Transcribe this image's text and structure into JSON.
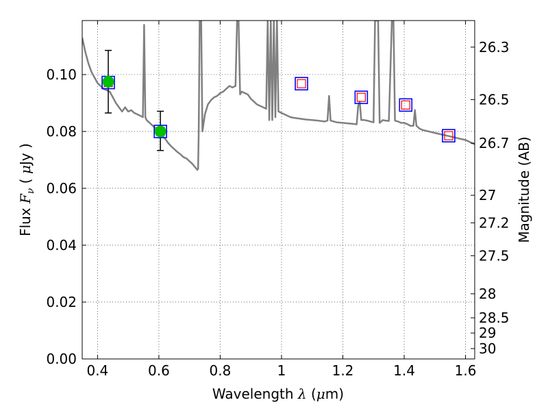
{
  "chart_data": {
    "type": "line",
    "xlabel_text": "Wavelength",
    "xlabel_symbol": "λ",
    "xlabel_unit_open": "(",
    "xlabel_unit_mu": "μ",
    "xlabel_unit_rest": "m)",
    "ylabel_text": "Flux",
    "ylabel_symbol_F": "F",
    "ylabel_symbol_sub": "ν",
    "ylabel_unit_open": "(",
    "ylabel_unit_mu": "μ",
    "ylabel_unit_rest": "Jy )",
    "y2label": "Magnitude (AB)",
    "xlim": [
      0.35,
      1.63
    ],
    "ylim": [
      0.0,
      0.119
    ],
    "grid": true,
    "x_ticks": [
      {
        "value": 0.4,
        "label": "0.4"
      },
      {
        "value": 0.6,
        "label": "0.6"
      },
      {
        "value": 0.8,
        "label": "0.8"
      },
      {
        "value": 1.0,
        "label": "1"
      },
      {
        "value": 1.2,
        "label": "1.2"
      },
      {
        "value": 1.4,
        "label": "1.4"
      },
      {
        "value": 1.6,
        "label": "1.6"
      }
    ],
    "y_ticks": [
      {
        "value": 0.0,
        "label": "0.00"
      },
      {
        "value": 0.02,
        "label": "0.02"
      },
      {
        "value": 0.04,
        "label": "0.04"
      },
      {
        "value": 0.06,
        "label": "0.06"
      },
      {
        "value": 0.08,
        "label": "0.08"
      },
      {
        "value": 0.1,
        "label": "0.10"
      }
    ],
    "mag_ticks": [
      {
        "value": 26.3,
        "label": "26.3"
      },
      {
        "value": 26.5,
        "label": "26.5"
      },
      {
        "value": 26.7,
        "label": "26.7"
      },
      {
        "value": 27.0,
        "label": "27"
      },
      {
        "value": 27.2,
        "label": "27.2"
      },
      {
        "value": 27.5,
        "label": "27.5"
      },
      {
        "value": 28.0,
        "label": "28"
      },
      {
        "value": 28.5,
        "label": "28.5"
      },
      {
        "value": 29.0,
        "label": "29"
      },
      {
        "value": 30.0,
        "label": "30"
      }
    ],
    "spectrum": {
      "color": "#808080",
      "points": [
        [
          0.35,
          0.113
        ],
        [
          0.36,
          0.108
        ],
        [
          0.37,
          0.104
        ],
        [
          0.38,
          0.101
        ],
        [
          0.39,
          0.099
        ],
        [
          0.4,
          0.097
        ],
        [
          0.41,
          0.096
        ],
        [
          0.42,
          0.095
        ],
        [
          0.43,
          0.0945
        ],
        [
          0.44,
          0.094
        ],
        [
          0.45,
          0.092
        ],
        [
          0.46,
          0.09
        ],
        [
          0.47,
          0.0885
        ],
        [
          0.48,
          0.087
        ],
        [
          0.49,
          0.0885
        ],
        [
          0.5,
          0.087
        ],
        [
          0.51,
          0.0875
        ],
        [
          0.52,
          0.0865
        ],
        [
          0.53,
          0.086
        ],
        [
          0.54,
          0.0855
        ],
        [
          0.548,
          0.085
        ],
        [
          0.552,
          0.1175
        ],
        [
          0.556,
          0.085
        ],
        [
          0.56,
          0.084
        ],
        [
          0.57,
          0.083
        ],
        [
          0.58,
          0.082
        ],
        [
          0.59,
          0.081
        ],
        [
          0.6,
          0.0795
        ],
        [
          0.61,
          0.0785
        ],
        [
          0.62,
          0.0775
        ],
        [
          0.63,
          0.076
        ],
        [
          0.64,
          0.0748
        ],
        [
          0.65,
          0.0738
        ],
        [
          0.66,
          0.0728
        ],
        [
          0.67,
          0.072
        ],
        [
          0.68,
          0.071
        ],
        [
          0.69,
          0.0705
        ],
        [
          0.7,
          0.0695
        ],
        [
          0.71,
          0.0685
        ],
        [
          0.72,
          0.0672
        ],
        [
          0.725,
          0.0665
        ],
        [
          0.728,
          0.0668
        ],
        [
          0.73,
          0.08
        ],
        [
          0.733,
          0.119
        ],
        [
          0.738,
          0.119
        ],
        [
          0.742,
          0.08
        ],
        [
          0.75,
          0.086
        ],
        [
          0.76,
          0.0895
        ],
        [
          0.77,
          0.091
        ],
        [
          0.78,
          0.092
        ],
        [
          0.79,
          0.0925
        ],
        [
          0.8,
          0.0935
        ],
        [
          0.81,
          0.094
        ],
        [
          0.82,
          0.095
        ],
        [
          0.83,
          0.096
        ],
        [
          0.84,
          0.0955
        ],
        [
          0.85,
          0.096
        ],
        [
          0.855,
          0.119
        ],
        [
          0.86,
          0.119
        ],
        [
          0.865,
          0.093
        ],
        [
          0.87,
          0.094
        ],
        [
          0.88,
          0.0935
        ],
        [
          0.89,
          0.093
        ],
        [
          0.9,
          0.0915
        ],
        [
          0.91,
          0.0905
        ],
        [
          0.92,
          0.0895
        ],
        [
          0.93,
          0.089
        ],
        [
          0.94,
          0.0885
        ],
        [
          0.95,
          0.088
        ],
        [
          0.955,
          0.119
        ],
        [
          0.96,
          0.084
        ],
        [
          0.965,
          0.119
        ],
        [
          0.97,
          0.084
        ],
        [
          0.975,
          0.119
        ],
        [
          0.98,
          0.085
        ],
        [
          0.985,
          0.119
        ],
        [
          0.99,
          0.087
        ],
        [
          1.0,
          0.0865
        ],
        [
          1.01,
          0.086
        ],
        [
          1.02,
          0.0855
        ],
        [
          1.03,
          0.085
        ],
        [
          1.04,
          0.0848
        ],
        [
          1.06,
          0.0845
        ],
        [
          1.08,
          0.0842
        ],
        [
          1.1,
          0.084
        ],
        [
          1.12,
          0.0838
        ],
        [
          1.14,
          0.0835
        ],
        [
          1.15,
          0.0838
        ],
        [
          1.155,
          0.0925
        ],
        [
          1.16,
          0.0838
        ],
        [
          1.18,
          0.0832
        ],
        [
          1.2,
          0.083
        ],
        [
          1.22,
          0.0828
        ],
        [
          1.24,
          0.0826
        ],
        [
          1.245,
          0.0825
        ],
        [
          1.25,
          0.089
        ],
        [
          1.255,
          0.0905
        ],
        [
          1.26,
          0.084
        ],
        [
          1.27,
          0.084
        ],
        [
          1.28,
          0.0838
        ],
        [
          1.29,
          0.0835
        ],
        [
          1.3,
          0.0832
        ],
        [
          1.305,
          0.119
        ],
        [
          1.315,
          0.119
        ],
        [
          1.32,
          0.083
        ],
        [
          1.33,
          0.084
        ],
        [
          1.34,
          0.0838
        ],
        [
          1.35,
          0.0837
        ],
        [
          1.36,
          0.119
        ],
        [
          1.365,
          0.119
        ],
        [
          1.37,
          0.0838
        ],
        [
          1.38,
          0.0835
        ],
        [
          1.39,
          0.083
        ],
        [
          1.4,
          0.083
        ],
        [
          1.41,
          0.0826
        ],
        [
          1.42,
          0.082
        ],
        [
          1.43,
          0.082
        ],
        [
          1.435,
          0.0875
        ],
        [
          1.44,
          0.082
        ],
        [
          1.45,
          0.081
        ],
        [
          1.46,
          0.0805
        ],
        [
          1.48,
          0.08
        ],
        [
          1.5,
          0.0795
        ],
        [
          1.52,
          0.079
        ],
        [
          1.54,
          0.0785
        ],
        [
          1.56,
          0.078
        ],
        [
          1.58,
          0.0775
        ],
        [
          1.6,
          0.077
        ],
        [
          1.62,
          0.076
        ],
        [
          1.63,
          0.0755
        ]
      ]
    },
    "squares": {
      "outer_color": "#0000ff",
      "inner_color": "#ff0000",
      "points": [
        {
          "x": 0.435,
          "y": 0.0972
        },
        {
          "x": 0.605,
          "y": 0.08
        },
        {
          "x": 1.065,
          "y": 0.0968
        },
        {
          "x": 1.26,
          "y": 0.092
        },
        {
          "x": 1.405,
          "y": 0.0893
        },
        {
          "x": 1.545,
          "y": 0.0785
        }
      ]
    },
    "detections": {
      "color": "#00c000",
      "points": [
        {
          "x": 0.435,
          "y": 0.0975,
          "yerr_low": 0.0865,
          "yerr_high": 0.1085
        },
        {
          "x": 0.605,
          "y": 0.08,
          "yerr_low": 0.0733,
          "yerr_high": 0.0871
        }
      ]
    }
  }
}
